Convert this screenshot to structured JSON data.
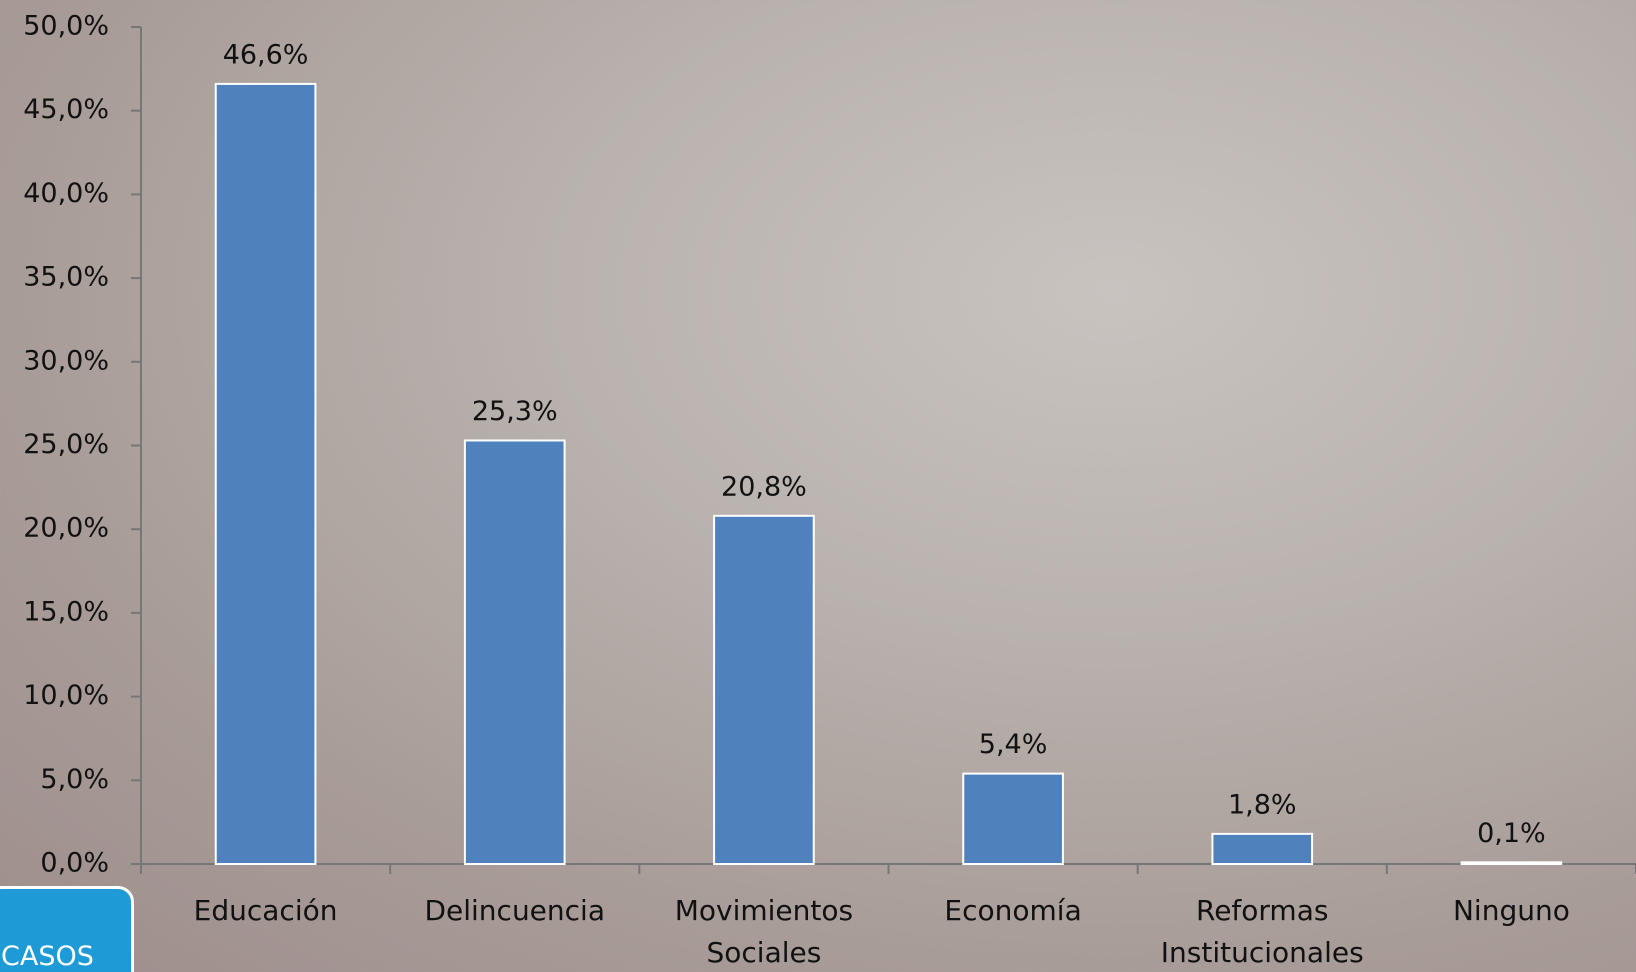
{
  "chart_data": {
    "type": "bar",
    "categories": [
      "Educación",
      "Delincuencia",
      "Movimientos Sociales",
      "Economía",
      "Reformas Institucionales",
      "Ninguno"
    ],
    "values": [
      46.6,
      25.3,
      20.8,
      5.4,
      1.8,
      0.1
    ],
    "value_labels": [
      "46,6%",
      "25,3%",
      "20,8%",
      "5,4%",
      "1,8%",
      "0,1%"
    ],
    "color": "#4f81bd",
    "ylim": [
      0,
      50
    ],
    "yticks": [
      {
        "value": 0,
        "label": "0,0%"
      },
      {
        "value": 5,
        "label": "5,0%"
      },
      {
        "value": 10,
        "label": "10,0%"
      },
      {
        "value": 15,
        "label": "15,0%"
      },
      {
        "value": 20,
        "label": "20,0%"
      },
      {
        "value": 25,
        "label": "25,0%"
      },
      {
        "value": 30,
        "label": "30,0%"
      },
      {
        "value": 35,
        "label": "35,0%"
      },
      {
        "value": 40,
        "label": "40,0%"
      },
      {
        "value": 45,
        "label": "45,0%"
      },
      {
        "value": 50,
        "label": "50,0%"
      }
    ],
    "annotation": "CASOS"
  }
}
